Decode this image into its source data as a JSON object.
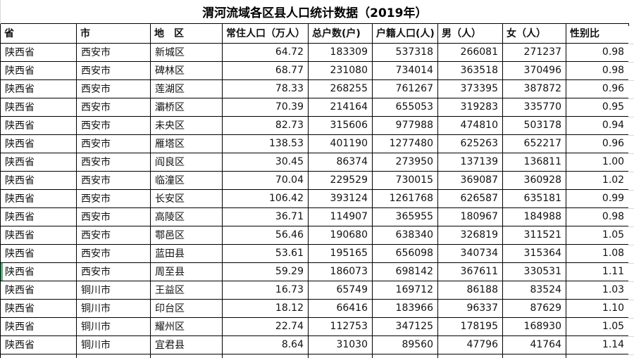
{
  "title": "渭河流域各区县人口统计数据（2019年）",
  "table": {
    "columns": [
      "省",
      "市",
      "地　区",
      "常住人口（万人）",
      "总户数(户)",
      "户籍人口(人)",
      "男（人）",
      "女（人）",
      "性别比"
    ],
    "rows": [
      [
        "陕西省",
        "西安市",
        "新城区",
        "64.72",
        "183309",
        "537318",
        "266081",
        "271237",
        "0.98"
      ],
      [
        "陕西省",
        "西安市",
        "碑林区",
        "68.77",
        "231080",
        "734014",
        "363518",
        "370496",
        "0.98"
      ],
      [
        "陕西省",
        "西安市",
        "莲湖区",
        "78.33",
        "268255",
        "761267",
        "373395",
        "387872",
        "0.96"
      ],
      [
        "陕西省",
        "西安市",
        "灞桥区",
        "70.39",
        "214164",
        "655053",
        "319283",
        "335770",
        "0.95"
      ],
      [
        "陕西省",
        "西安市",
        "未央区",
        "82.73",
        "315606",
        "977988",
        "474810",
        "503178",
        "0.94"
      ],
      [
        "陕西省",
        "西安市",
        "雁塔区",
        "138.53",
        "401190",
        "1277480",
        "625263",
        "652217",
        "0.96"
      ],
      [
        "陕西省",
        "西安市",
        "阎良区",
        "30.45",
        "86374",
        "273950",
        "137139",
        "136811",
        "1.00"
      ],
      [
        "陕西省",
        "西安市",
        "临潼区",
        "70.04",
        "229529",
        "730015",
        "369087",
        "360928",
        "1.02"
      ],
      [
        "陕西省",
        "西安市",
        "长安区",
        "106.42",
        "393124",
        "1261768",
        "626587",
        "635181",
        "0.99"
      ],
      [
        "陕西省",
        "西安市",
        "高陵区",
        "36.71",
        "114907",
        "365955",
        "180967",
        "184988",
        "0.98"
      ],
      [
        "陕西省",
        "西安市",
        "鄠邑区",
        "56.46",
        "190680",
        "638340",
        "326819",
        "311521",
        "1.05"
      ],
      [
        "陕西省",
        "西安市",
        "蓝田县",
        "53.61",
        "195165",
        "656098",
        "340734",
        "315364",
        "1.08"
      ],
      [
        "陕西省",
        "西安市",
        "周至县",
        "59.29",
        "186073",
        "698142",
        "367611",
        "330531",
        "1.11"
      ],
      [
        "陕西省",
        "铜川市",
        "王益区",
        "16.73",
        "65749",
        "169712",
        "86188",
        "83524",
        "1.03"
      ],
      [
        "陕西省",
        "铜川市",
        "印台区",
        "18.12",
        "66416",
        "183966",
        "96337",
        "87629",
        "1.10"
      ],
      [
        "陕西省",
        "铜川市",
        "耀州区",
        "22.74",
        "112753",
        "347125",
        "178195",
        "168930",
        "1.05"
      ],
      [
        "陕西省",
        "铜川市",
        "宜君县",
        "8.64",
        "31030",
        "89560",
        "47796",
        "41764",
        "1.14"
      ]
    ],
    "selected_row_index": 12
  },
  "colors": {
    "border": "#000000",
    "gridline": "#d9d9d9",
    "selection_green": "#53b483"
  }
}
